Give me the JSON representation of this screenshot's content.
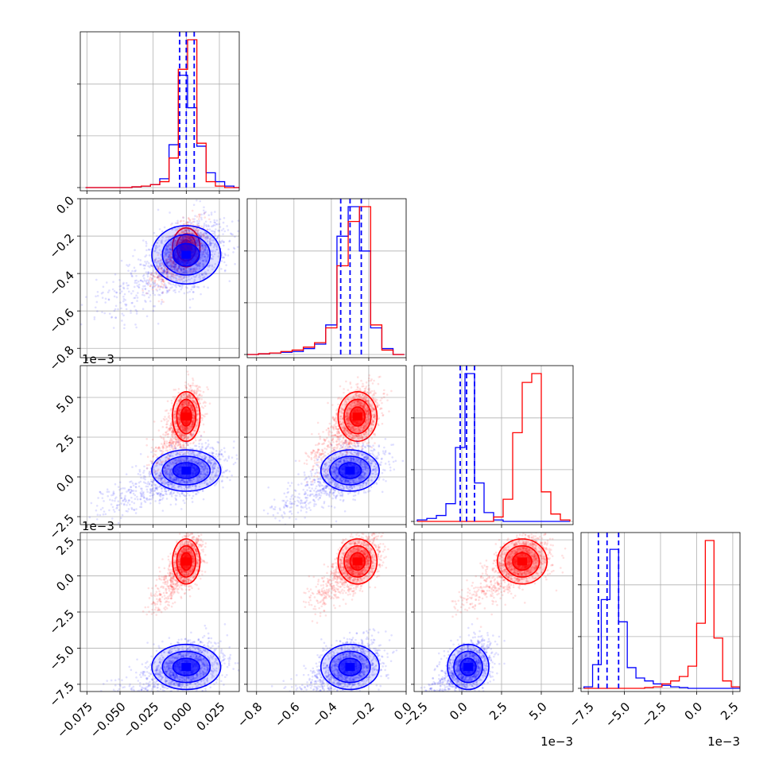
{
  "colors": {
    "red": "#ff0000",
    "blue": "#0000ff",
    "grid": "#b0b0b0",
    "axis": "#000000"
  },
  "chart_data": {
    "type": "scatter",
    "title": "",
    "grid": true,
    "parameters": 4,
    "series": [
      {
        "color": "#ff0000",
        "center": [
          0.0,
          -0.26,
          0.0038,
          0.001
        ],
        "sd": [
          0.004,
          0.04,
          0.0006,
          0.0006
        ]
      },
      {
        "color": "#0000ff",
        "center": [
          0.0,
          -0.3,
          0.0004,
          -0.0063
        ],
        "sd": [
          0.01,
          0.06,
          0.0005,
          0.0006
        ]
      }
    ],
    "quantile_lines": {
      "color": "#0000ff",
      "values": [
        [
          -0.005,
          0.0,
          0.006
        ],
        [
          -0.35,
          -0.3,
          -0.24
        ],
        [
          -0.0001,
          0.0003,
          0.0008
        ],
        [
          -0.0068,
          -0.0062,
          -0.0054
        ]
      ]
    },
    "histograms": [
      {
        "bins": [
          -0.076,
          -0.069,
          -0.062,
          -0.055,
          -0.048,
          -0.041,
          -0.034,
          -0.027,
          -0.02,
          -0.013,
          -0.006,
          0.001,
          0.008,
          0.015,
          0.022,
          0.029,
          0.036,
          0.043
        ],
        "red": [
          0,
          0,
          0,
          0,
          0,
          0.5,
          1,
          2,
          4,
          20,
          80,
          100,
          30,
          4,
          1,
          0,
          0
        ],
        "blue": [
          0,
          0,
          0,
          0,
          0,
          0.5,
          1,
          2,
          6,
          29,
          76,
          54,
          28,
          10,
          4,
          1,
          0
        ]
      },
      {
        "bins": [
          -0.85,
          -0.79,
          -0.73,
          -0.67,
          -0.61,
          -0.55,
          -0.49,
          -0.43,
          -0.37,
          -0.31,
          -0.25,
          -0.19,
          -0.13,
          -0.07,
          -0.01
        ],
        "red": [
          0,
          0.5,
          1,
          2,
          3,
          5,
          8,
          18,
          60,
          90,
          100,
          20,
          3,
          0
        ],
        "blue": [
          0,
          0.5,
          1,
          1.5,
          2,
          4,
          7,
          20,
          80,
          100,
          70,
          18,
          4,
          0
        ]
      },
      {
        "bins": [
          -0.0028,
          -0.0022,
          -0.0016,
          -0.001,
          -0.0004,
          0.0002,
          0.0008,
          0.0014,
          0.002,
          0.0026,
          0.0032,
          0.0038,
          0.0044,
          0.005,
          0.0056,
          0.0062,
          0.0068
        ],
        "red": [
          0,
          0,
          0,
          0,
          0,
          0,
          0,
          0,
          3,
          15,
          60,
          94,
          100,
          20,
          5,
          1
        ],
        "blue": [
          1,
          2,
          4,
          12,
          50,
          100,
          26,
          6,
          1,
          0,
          0,
          0,
          0,
          0,
          0,
          0
        ]
      },
      {
        "bins": [
          -0.0078,
          -0.0072,
          -0.0066,
          -0.006,
          -0.0054,
          -0.0048,
          -0.0042,
          -0.0036,
          -0.003,
          -0.0024,
          -0.0018,
          -0.0012,
          -0.0006,
          0.0,
          0.0006,
          0.0012,
          0.0018,
          0.0024,
          0.003
        ],
        "red": [
          0,
          0,
          0,
          0,
          0,
          0,
          0,
          0.5,
          1,
          3,
          5,
          8,
          15,
          44,
          100,
          34,
          5,
          1
        ],
        "blue": [
          1,
          16,
          60,
          94,
          45,
          14,
          7,
          5,
          3,
          2,
          1,
          0.5,
          0,
          0,
          0,
          0,
          0,
          0
        ]
      }
    ],
    "axes": [
      {
        "range": [
          -0.08,
          0.04
        ],
        "ticks": [
          -0.075,
          -0.05,
          -0.025,
          0.0,
          0.025
        ],
        "tick_labels": [
          "−0.075",
          "−0.050",
          "−0.025",
          "0.000",
          "0.025"
        ],
        "offset": ""
      },
      {
        "range": [
          -0.85,
          0.0
        ],
        "ticks": [
          -0.8,
          -0.6,
          -0.4,
          -0.2,
          0.0
        ],
        "tick_labels": [
          "−0.8",
          "−0.6",
          "−0.4",
          "−0.2",
          "0.0"
        ],
        "offset": ""
      },
      {
        "range": [
          -0.003,
          0.007
        ],
        "ticks": [
          -0.0025,
          0.0,
          0.0025,
          0.005
        ],
        "tick_labels": [
          "−2.5",
          "0.0",
          "2.5",
          "5.0"
        ],
        "offset": "1e−3"
      },
      {
        "range": [
          -0.008,
          0.003
        ],
        "ticks": [
          -0.0075,
          -0.005,
          -0.0025,
          0.0,
          0.0025
        ],
        "tick_labels": [
          "−7.5",
          "−5.0",
          "−2.5",
          "0.0",
          "2.5"
        ],
        "offset": "1e−3"
      }
    ]
  }
}
